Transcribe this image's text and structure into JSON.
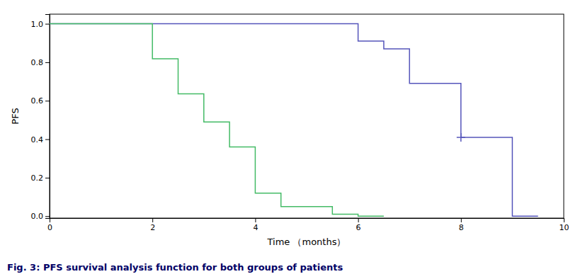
{
  "chart_data": {
    "type": "line",
    "caption": "Fig. 3: PFS survival analysis function for both groups of patients",
    "xlabel": "Time （months）",
    "ylabel": "PFS",
    "series": [
      {
        "type": "line",
        "color": "#5555bb",
        "x": [
          0,
          6,
          6,
          6.5,
          6.5,
          7,
          7,
          8,
          8,
          9,
          9,
          9.5
        ],
        "values": [
          1.0,
          1.0,
          0.91,
          0.91,
          0.87,
          0.87,
          0.69,
          0.69,
          0.41,
          0.41,
          0.0,
          0.0
        ]
      },
      {
        "type": "line",
        "color": "#44bb66",
        "x": [
          0,
          2,
          2,
          2.5,
          2.5,
          3.0,
          3.0,
          3.5,
          3.5,
          4.0,
          4.0,
          4.5,
          4.5,
          5.5,
          5.5,
          6.0,
          6.0,
          6.5
        ],
        "values": [
          1.0,
          1.0,
          0.818,
          0.818,
          0.636,
          0.636,
          0.49,
          0.49,
          0.36,
          0.36,
          0.12,
          0.12,
          0.05,
          0.05,
          0.01,
          0.01,
          0.0,
          0.0
        ]
      },
      {
        "type": "scatter",
        "marker": "plus",
        "color": "#5555bb",
        "x": [
          8
        ],
        "values": [
          0.41
        ]
      }
    ],
    "xlim": [
      0,
      10
    ],
    "ylim": [
      -0.01,
      1.05
    ],
    "xticks": [
      0,
      2,
      4,
      6,
      8,
      10
    ],
    "yticks": [
      {
        "value": 0.0,
        "label": "0.0"
      },
      {
        "value": 0.2,
        "label": "0.2"
      },
      {
        "value": 0.4,
        "label": "0.4"
      },
      {
        "value": 0.6,
        "label": "0.6"
      },
      {
        "value": 0.8,
        "label": "0.8"
      },
      {
        "value": 1.0,
        "label": "1.0"
      }
    ],
    "grid": false
  }
}
